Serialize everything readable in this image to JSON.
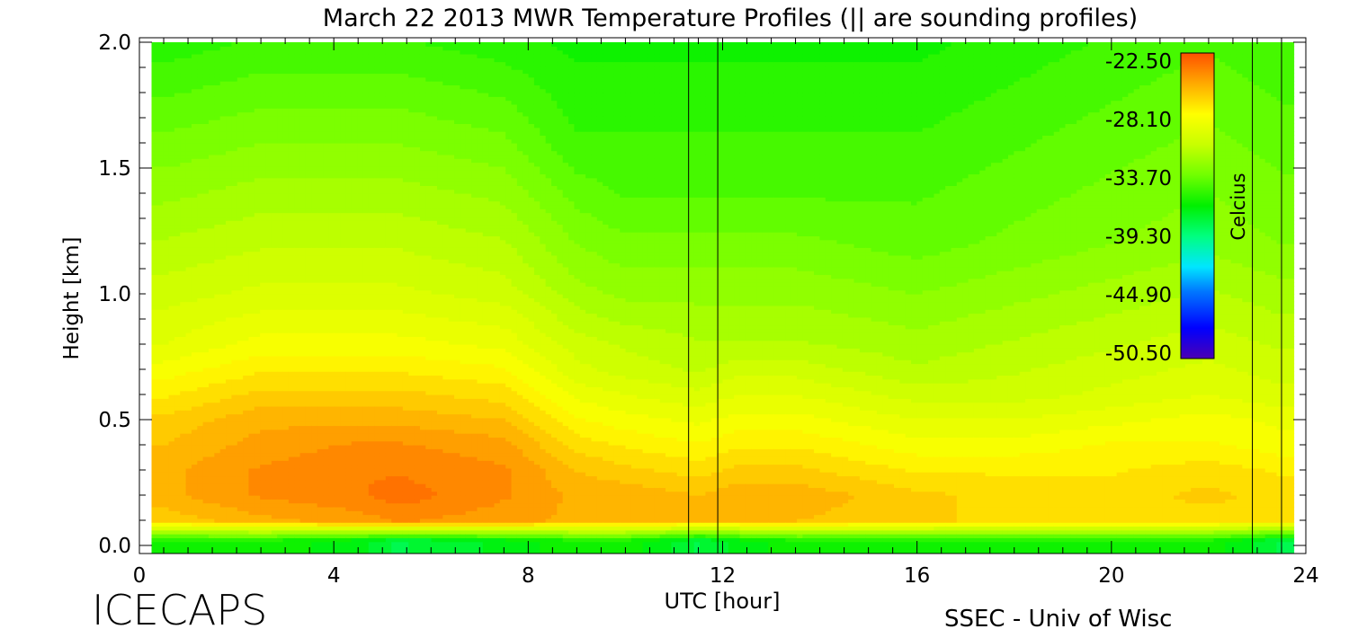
{
  "chart_data": {
    "type": "heatmap",
    "title": "March 22 2013 MWR Temperature Profiles (|| are sounding profiles)",
    "xlabel": "UTC [hour]",
    "ylabel": "Height [km]",
    "xlim": [
      0,
      24
    ],
    "ylim": [
      0,
      2.0
    ],
    "x_ticks": [
      "0",
      "4",
      "8",
      "12",
      "16",
      "20",
      "24"
    ],
    "x_tick_values": [
      0,
      4,
      8,
      12,
      16,
      20,
      24
    ],
    "y_ticks": [
      "0.0",
      "0.5",
      "1.0",
      "1.5",
      "2.0"
    ],
    "y_tick_values": [
      0,
      0.5,
      1.0,
      1.5,
      2.0
    ],
    "colorbar": {
      "label": "Celcius",
      "min": -50.5,
      "max": -22.5,
      "ticks": [
        "-22.50",
        "-28.10",
        "-33.70",
        "-39.30",
        "-44.90",
        "-50.50"
      ],
      "tick_values": [
        -22.5,
        -28.1,
        -33.7,
        -39.3,
        -44.9,
        -50.5
      ]
    },
    "sounding_times": [
      11.3,
      11.9,
      22.9,
      23.5
    ],
    "data_extent_hours": [
      0.25,
      23.75
    ],
    "surface_cold_layer_top_km": 0.05,
    "profile_heights_km": [
      0.02,
      0.1,
      0.2,
      0.3,
      0.4,
      0.5,
      0.6,
      0.7,
      0.8,
      1.0,
      1.2,
      1.4,
      1.6,
      1.8,
      2.0
    ],
    "profiles": [
      {
        "hour": 0.5,
        "temps_c": [
          -36,
          -26.5,
          -25.5,
          -25.5,
          -26,
          -26.5,
          -27.5,
          -28.5,
          -29.5,
          -30.5,
          -31.5,
          -32.5,
          -33.5,
          -34.5,
          -35.5
        ]
      },
      {
        "hour": 2.5,
        "temps_c": [
          -36,
          -25.5,
          -24.5,
          -24.5,
          -25,
          -25.5,
          -26.5,
          -27.5,
          -28.5,
          -30,
          -31,
          -32,
          -33,
          -34,
          -35
        ]
      },
      {
        "hour": 4.5,
        "temps_c": [
          -37,
          -25,
          -24,
          -24,
          -24.5,
          -25.5,
          -26.5,
          -27.5,
          -28.5,
          -30,
          -31,
          -32,
          -33,
          -34,
          -35
        ]
      },
      {
        "hour": 5.3,
        "temps_c": [
          -38,
          -24.5,
          -23.5,
          -24,
          -24.5,
          -25.5,
          -26.5,
          -27.5,
          -28.5,
          -30,
          -31,
          -32,
          -33,
          -34,
          -35
        ]
      },
      {
        "hour": 7.5,
        "temps_c": [
          -37,
          -25,
          -24.5,
          -24.5,
          -25,
          -26,
          -27,
          -28,
          -29,
          -30.5,
          -31.5,
          -32.5,
          -33.5,
          -34.5,
          -35.5
        ]
      },
      {
        "hour": 9.0,
        "temps_c": [
          -36,
          -25.5,
          -25.5,
          -26,
          -27,
          -28,
          -29,
          -30,
          -30.5,
          -32,
          -33,
          -34,
          -35,
          -35.5,
          -36
        ]
      },
      {
        "hour": 10.0,
        "temps_c": [
          -36,
          -25.5,
          -25.5,
          -26.5,
          -27.5,
          -28.5,
          -29.5,
          -30.5,
          -31,
          -32.5,
          -33.5,
          -34.5,
          -35,
          -35.5,
          -36
        ]
      },
      {
        "hour": 11.5,
        "temps_c": [
          -38,
          -26,
          -26,
          -27,
          -28,
          -29,
          -30,
          -31,
          -31.5,
          -32.5,
          -33.5,
          -34.5,
          -35,
          -35.5,
          -36
        ]
      },
      {
        "hour": 12.3,
        "temps_c": [
          -37,
          -26,
          -25.5,
          -26.5,
          -27.5,
          -28.5,
          -29.5,
          -30.5,
          -31.5,
          -32.5,
          -33.5,
          -34.5,
          -35,
          -35.5,
          -36
        ]
      },
      {
        "hour": 13.5,
        "temps_c": [
          -36,
          -26,
          -25.5,
          -26.5,
          -27.5,
          -28.5,
          -29.5,
          -30.5,
          -31.5,
          -32.5,
          -33.5,
          -34.5,
          -35,
          -35.5,
          -36
        ]
      },
      {
        "hour": 16.0,
        "temps_c": [
          -36,
          -26.5,
          -26.5,
          -27.5,
          -28.5,
          -29.5,
          -30.5,
          -31.5,
          -32,
          -33,
          -34,
          -34.5,
          -35,
          -35.5,
          -36
        ]
      },
      {
        "hour": 18.0,
        "temps_c": [
          -36,
          -27,
          -27,
          -27.5,
          -28.5,
          -29.5,
          -30.5,
          -31,
          -31.5,
          -32.5,
          -33.5,
          -34,
          -34.5,
          -35,
          -35.5
        ]
      },
      {
        "hour": 20.0,
        "temps_c": [
          -36,
          -27,
          -27,
          -27.5,
          -28,
          -29,
          -30,
          -30.5,
          -31,
          -32,
          -33,
          -33.5,
          -34,
          -34.5,
          -35
        ]
      },
      {
        "hour": 22.0,
        "temps_c": [
          -36,
          -27,
          -26.5,
          -27,
          -28,
          -28.5,
          -29.5,
          -30,
          -30.5,
          -31.5,
          -32.5,
          -33,
          -33.5,
          -34,
          -34.5
        ]
      },
      {
        "hour": 23.5,
        "temps_c": [
          -38,
          -27,
          -27,
          -27.5,
          -28.5,
          -29,
          -30,
          -30.5,
          -31,
          -32,
          -33,
          -33.5,
          -34,
          -34.5,
          -35
        ]
      }
    ]
  },
  "footer": {
    "logo_text": "ICECAPS",
    "credit": "SSEC - Univ of Wisc"
  }
}
